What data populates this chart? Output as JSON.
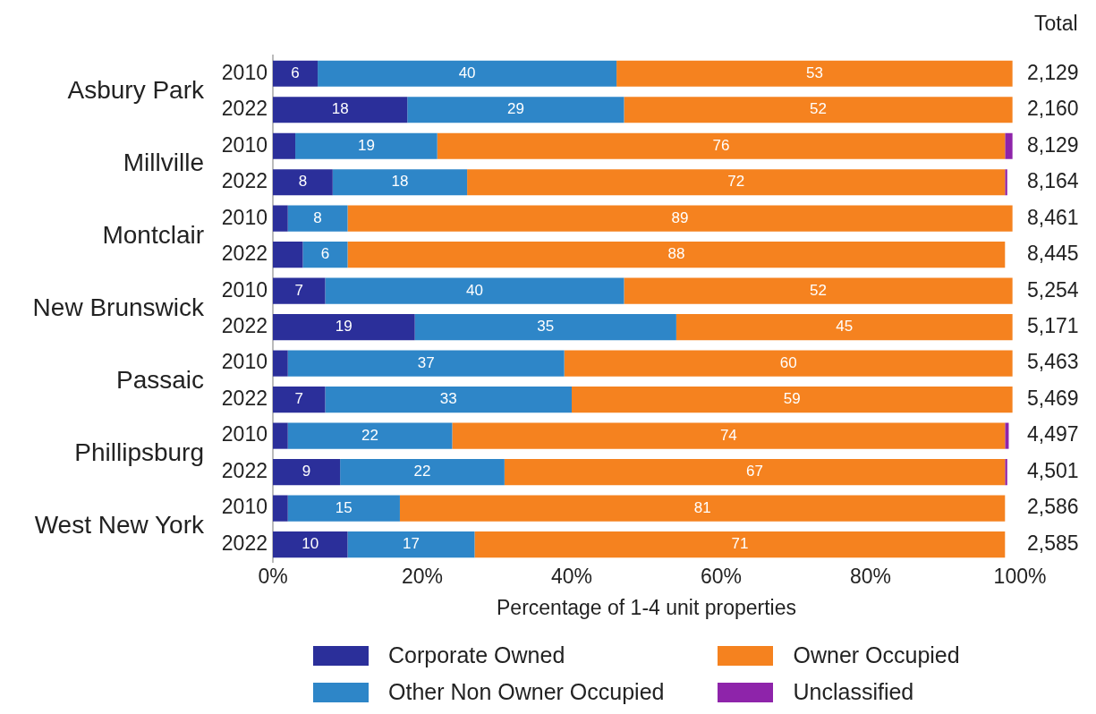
{
  "chart_data": {
    "type": "bar",
    "orientation": "horizontal",
    "stacked": true,
    "categories": [
      "2010",
      "2022",
      "2010",
      "2022",
      "2010",
      "2022",
      "2010",
      "2022",
      "2010",
      "2022",
      "2010",
      "2022",
      "2010",
      "2022"
    ],
    "series": [
      {
        "name": "Corporate Owned",
        "color": "#2b2f9a",
        "values": [
          6,
          18,
          3,
          8,
          2,
          4,
          7,
          19,
          2,
          7,
          2,
          9,
          2,
          10
        ],
        "value_labels": [
          "6",
          "18",
          null,
          "8",
          null,
          null,
          "7",
          "19",
          null,
          "7",
          null,
          "9",
          null,
          "10"
        ]
      },
      {
        "name": "Other Non Owner Occupied",
        "color": "#2e86c8",
        "values": [
          40,
          29,
          19,
          18,
          8,
          6,
          40,
          35,
          37,
          33,
          22,
          22,
          15,
          17
        ],
        "value_labels": [
          "40",
          "29",
          "19",
          "18",
          "8",
          "6",
          "40",
          "35",
          "37",
          "33",
          "22",
          "22",
          "15",
          "17"
        ]
      },
      {
        "name": "Owner Occupied",
        "color": "#f5821f",
        "values": [
          53,
          52,
          76,
          72,
          89,
          88,
          52,
          45,
          60,
          59,
          74,
          67,
          81,
          71
        ],
        "value_labels": [
          "53",
          "52",
          "76",
          "72",
          "89",
          "88",
          "52",
          "45",
          "60",
          "59",
          "74",
          "67",
          "81",
          "71"
        ]
      },
      {
        "name": "Unclassified",
        "color": "#8e24aa",
        "values": [
          0,
          0,
          1,
          0.3,
          0,
          0,
          0,
          0,
          0,
          0,
          0.5,
          0.3,
          0,
          0
        ],
        "value_labels": [
          null,
          null,
          null,
          null,
          null,
          null,
          null,
          null,
          null,
          null,
          null,
          null,
          null,
          null
        ]
      }
    ],
    "annotations": [
      "Asbury Park",
      "Millville",
      "Montclair",
      "New Brunswick",
      "Passaic",
      "Phillipsburg",
      "West New York",
      "Total",
      "2,129",
      "2,160",
      "8,129",
      "8,164",
      "8,461",
      "8,445",
      "5,254",
      "5,171",
      "5,463",
      "5,469",
      "4,497",
      "4,501",
      "2,586",
      "2,585"
    ],
    "xlabel": "Percentage of 1-4 unit properties",
    "xlim": [
      0,
      100
    ],
    "xticks": [
      {
        "value": 0,
        "label": "0%"
      },
      {
        "value": 20,
        "label": "20%"
      },
      {
        "value": 40,
        "label": "40%"
      },
      {
        "value": 60,
        "label": "60%"
      },
      {
        "value": 80,
        "label": "80%"
      },
      {
        "value": 100,
        "label": "100%"
      }
    ],
    "grid": false,
    "legend": "bottom"
  }
}
